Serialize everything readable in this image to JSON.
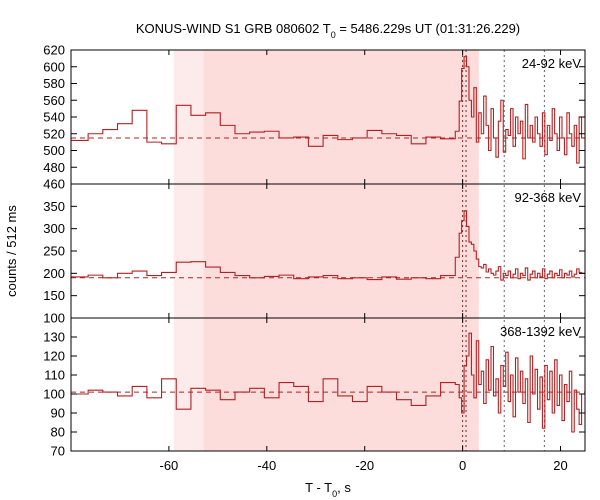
{
  "chart_data": {
    "type": "line",
    "title_parts": {
      "prefix": "KONUS-WIND S1 GRB 080602 T",
      "subscript": "0",
      "suffix": " = 5486.229s UT (01:31:26.229)"
    },
    "xlabel_parts": {
      "prefix": "T - T",
      "subscript": "0",
      "suffix": ", s"
    },
    "ylabel": "counts / 512 ms",
    "xlim": [
      -80,
      25
    ],
    "xticks": [
      -60,
      -40,
      -20,
      0,
      20
    ],
    "xtick_labels": [
      "-60",
      "-40",
      "-20",
      "0",
      "20"
    ],
    "shaded_regions": [
      {
        "name": "background-light",
        "x0": -59.0,
        "x1": 3.3,
        "color": "#fdeaea"
      },
      {
        "name": "background-main",
        "x0": -52.9,
        "x1": 3.3,
        "color": "#fddcdc"
      }
    ],
    "vertical_lines": [
      {
        "name": "t0-line-a",
        "x": 0.0,
        "color": "#7a2b2b"
      },
      {
        "name": "t0-line-b",
        "x": 0.7,
        "color": "#7a2b2b"
      },
      {
        "name": "interval-line-1",
        "x": 8.5,
        "color": "#666666"
      },
      {
        "name": "interval-line-2",
        "x": 16.7,
        "color": "#666666"
      }
    ],
    "series_color": "#b22222",
    "panels": [
      {
        "name": "24-92 keV",
        "label": "24-92 keV",
        "ylim": [
          460,
          620
        ],
        "yticks": [
          460,
          480,
          500,
          520,
          540,
          560,
          580,
          600,
          620
        ],
        "ytick_labels": [
          "460",
          "480",
          "500",
          "520",
          "540",
          "560",
          "580",
          "600",
          "620"
        ],
        "background_level": 515,
        "x": [
          -80,
          -76.5,
          -73.5,
          -70.5,
          -67.5,
          -64.5,
          -61.5,
          -58.5,
          -55.5,
          -52.5,
          -49.5,
          -46.5,
          -43.5,
          -40.5,
          -37.5,
          -34.5,
          -31.5,
          -28.5,
          -25.5,
          -22.5,
          -19.5,
          -16.5,
          -13.5,
          -10.5,
          -7.5,
          -4.5,
          -1.5,
          -0.7,
          -0.2,
          0.3,
          0.8,
          1.3,
          1.8,
          2.3,
          2.8,
          3.3,
          3.8,
          4.3,
          4.8,
          5.3,
          5.8,
          6.3,
          6.8,
          7.3,
          7.8,
          8.3,
          8.8,
          9.3,
          9.8,
          10.3,
          10.8,
          11.3,
          11.8,
          12.3,
          12.8,
          13.3,
          13.8,
          14.3,
          14.8,
          15.3,
          15.8,
          16.3,
          16.8,
          17.3,
          17.8,
          18.3,
          18.8,
          19.3,
          19.8,
          20.3,
          20.8,
          21.3,
          21.8,
          22.3,
          22.8,
          23.3,
          23.8,
          24.3
        ],
        "values": [
          512,
          520,
          525,
          532,
          548,
          510,
          508,
          554,
          542,
          545,
          530,
          520,
          522,
          523,
          515,
          516,
          505,
          518,
          513,
          515,
          524,
          520,
          518,
          508,
          516,
          514,
          523,
          559,
          598,
          612,
          600,
          560,
          540,
          575,
          510,
          545,
          520,
          565,
          530,
          500,
          550,
          515,
          492,
          535,
          560,
          498,
          525,
          518,
          550,
          505,
          540,
          520,
          535,
          490,
          555,
          515,
          530,
          510,
          540,
          520,
          505,
          545,
          495,
          530,
          512,
          550,
          520,
          500,
          540,
          515,
          495,
          545,
          520,
          505,
          530,
          485,
          540,
          515
        ]
      },
      {
        "name": "92-368 keV",
        "label": "92-368 keV",
        "ylim": [
          100,
          400
        ],
        "yticks": [
          100,
          150,
          200,
          250,
          300,
          350
        ],
        "ytick_labels": [
          "100",
          "150",
          "200",
          "250",
          "300",
          "350"
        ],
        "background_level": 190,
        "x": [
          -80,
          -76.5,
          -73.5,
          -70.5,
          -67.5,
          -64.5,
          -61.5,
          -58.5,
          -55.5,
          -52.5,
          -49.5,
          -46.5,
          -43.5,
          -40.5,
          -37.5,
          -34.5,
          -31.5,
          -28.5,
          -25.5,
          -22.5,
          -19.5,
          -16.5,
          -13.5,
          -10.5,
          -7.5,
          -4.5,
          -1.5,
          -0.7,
          -0.2,
          0.3,
          0.8,
          1.3,
          1.8,
          2.3,
          2.8,
          3.3,
          3.8,
          4.3,
          4.8,
          5.3,
          5.8,
          6.3,
          6.8,
          7.3,
          7.8,
          8.3,
          8.8,
          9.3,
          9.8,
          10.3,
          10.8,
          11.3,
          11.8,
          12.3,
          12.8,
          13.3,
          13.8,
          14.3,
          14.8,
          15.3,
          15.8,
          16.3,
          16.8,
          17.3,
          17.8,
          18.3,
          18.8,
          19.3,
          19.8,
          20.3,
          20.8,
          21.3,
          21.8,
          22.3,
          22.8,
          23.3,
          23.8,
          24.3
        ],
        "values": [
          192,
          196,
          190,
          200,
          205,
          195,
          202,
          225,
          226,
          214,
          202,
          195,
          190,
          193,
          196,
          188,
          192,
          195,
          188,
          190,
          186,
          192,
          187,
          190,
          188,
          195,
          236,
          290,
          318,
          340,
          305,
          270,
          265,
          250,
          232,
          215,
          212,
          220,
          203,
          210,
          200,
          196,
          205,
          215,
          185,
          200,
          195,
          205,
          190,
          198,
          210,
          188,
          200,
          195,
          212,
          185,
          198,
          205,
          190,
          200,
          192,
          210,
          188,
          198,
          205,
          190,
          200,
          195,
          208,
          190,
          200,
          196,
          205,
          192,
          198,
          210,
          202,
          200
        ]
      },
      {
        "name": "368-1392 keV",
        "label": "368-1392 keV",
        "ylim": [
          70,
          140
        ],
        "yticks": [
          70,
          80,
          90,
          100,
          110,
          120,
          130
        ],
        "ytick_labels": [
          "70",
          "80",
          "90",
          "100",
          "110",
          "120",
          "130"
        ],
        "background_level": 101,
        "x": [
          -80,
          -76.5,
          -73.5,
          -70.5,
          -67.5,
          -64.5,
          -61.5,
          -58.5,
          -55.5,
          -52.5,
          -49.5,
          -46.5,
          -43.5,
          -40.5,
          -37.5,
          -34.5,
          -31.5,
          -28.5,
          -25.5,
          -22.5,
          -19.5,
          -16.5,
          -13.5,
          -10.5,
          -7.5,
          -4.5,
          -1.5,
          -0.7,
          -0.2,
          0.3,
          0.8,
          1.3,
          1.8,
          2.3,
          2.8,
          3.3,
          3.8,
          4.3,
          4.8,
          5.3,
          5.8,
          6.3,
          6.8,
          7.3,
          7.8,
          8.3,
          8.8,
          9.3,
          9.8,
          10.3,
          10.8,
          11.3,
          11.8,
          12.3,
          12.8,
          13.3,
          13.8,
          14.3,
          14.8,
          15.3,
          15.8,
          16.3,
          16.8,
          17.3,
          17.8,
          18.3,
          18.8,
          19.3,
          19.8,
          20.3,
          20.8,
          21.3,
          21.8,
          22.3,
          22.8,
          23.3,
          23.8,
          24.3
        ],
        "values": [
          100,
          102,
          101,
          99,
          104,
          98,
          108,
          92,
          103,
          102,
          97,
          101,
          103,
          98,
          106,
          104,
          96,
          108,
          99,
          96,
          104,
          101,
          97,
          94,
          99,
          106,
          105,
          98,
          90,
          115,
          120,
          132,
          110,
          98,
          128,
          105,
          112,
          95,
          118,
          102,
          125,
          99,
          108,
          90,
          115,
          104,
          122,
          96,
          110,
          88,
          119,
          101,
          112,
          95,
          108,
          85,
          120,
          100,
          113,
          92,
          109,
          82,
          115,
          97,
          112,
          90,
          118,
          94,
          110,
          86,
          105,
          96,
          112,
          80,
          102,
          92,
          84,
          100
        ]
      }
    ]
  }
}
